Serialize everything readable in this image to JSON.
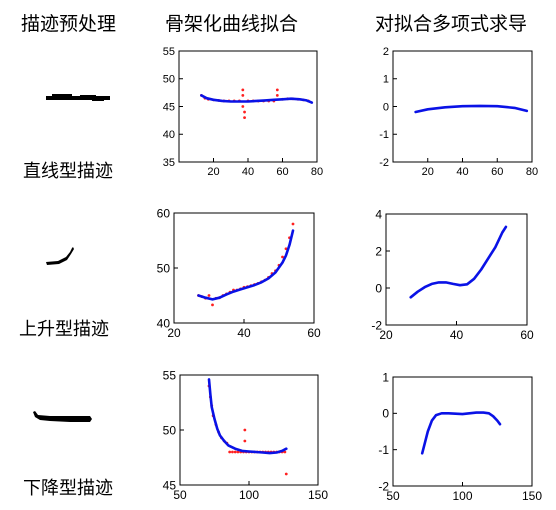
{
  "headers": {
    "col1": "描迹预处理",
    "col2": "骨架化曲线拟合",
    "col3": "对拟合多项式求导"
  },
  "rows": [
    {
      "label": "直线型描迹"
    },
    {
      "label": "上升型描迹"
    },
    {
      "label": "下降型描迹"
    }
  ],
  "chart_data": [
    {
      "id": "fit-straight",
      "type": "scatter",
      "xlim": [
        0,
        80
      ],
      "ylim": [
        35,
        55
      ],
      "xticks": [
        20,
        40,
        60,
        80
      ],
      "yticks": [
        35,
        40,
        45,
        50,
        55
      ],
      "xtick_labels": [
        "20",
        "40",
        "60",
        "80"
      ],
      "ytick_labels": [
        "35",
        "40",
        "45",
        "50",
        "55"
      ],
      "points": [
        [
          13,
          47
        ],
        [
          15,
          46.5
        ],
        [
          17,
          46.3
        ],
        [
          20,
          46.2
        ],
        [
          23,
          46.1
        ],
        [
          26,
          46
        ],
        [
          29,
          46
        ],
        [
          32,
          46
        ],
        [
          35,
          46
        ],
        [
          37,
          48
        ],
        [
          37,
          47
        ],
        [
          37,
          45
        ],
        [
          38,
          44
        ],
        [
          38,
          43
        ],
        [
          40,
          46
        ],
        [
          43,
          46
        ],
        [
          46,
          46
        ],
        [
          49,
          46
        ],
        [
          52,
          46
        ],
        [
          55,
          46
        ],
        [
          57,
          48
        ],
        [
          57,
          47
        ],
        [
          60,
          46.3
        ],
        [
          63,
          46.4
        ],
        [
          66,
          46.4
        ],
        [
          69,
          46.3
        ],
        [
          72,
          46.2
        ],
        [
          75,
          46
        ]
      ],
      "curve": [
        [
          13,
          47
        ],
        [
          16,
          46.5
        ],
        [
          20,
          46.2
        ],
        [
          25,
          46
        ],
        [
          30,
          45.9
        ],
        [
          35,
          45.9
        ],
        [
          40,
          45.9
        ],
        [
          45,
          46
        ],
        [
          50,
          46.1
        ],
        [
          55,
          46.2
        ],
        [
          60,
          46.3
        ],
        [
          65,
          46.4
        ],
        [
          70,
          46.3
        ],
        [
          74,
          46.1
        ],
        [
          77,
          45.7
        ]
      ]
    },
    {
      "id": "deriv-straight",
      "type": "line",
      "xlim": [
        0,
        80
      ],
      "ylim": [
        -2,
        2
      ],
      "xticks": [
        20,
        40,
        60,
        80
      ],
      "yticks": [
        -2,
        -1,
        0,
        1,
        2
      ],
      "xtick_labels": [
        "20",
        "40",
        "60",
        "80"
      ],
      "ytick_labels": [
        "-2",
        "-1",
        "0",
        "1",
        "2"
      ],
      "curve": [
        [
          13,
          -0.2
        ],
        [
          20,
          -0.1
        ],
        [
          30,
          -0.03
        ],
        [
          40,
          0.01
        ],
        [
          50,
          0.02
        ],
        [
          60,
          0.01
        ],
        [
          70,
          -0.05
        ],
        [
          77,
          -0.16
        ]
      ]
    },
    {
      "id": "fit-rising",
      "type": "scatter",
      "xlim": [
        20,
        60
      ],
      "ylim": [
        40,
        60
      ],
      "xticks": [
        20,
        40,
        60
      ],
      "yticks": [
        40,
        50,
        60
      ],
      "xtick_labels": [
        "20",
        "40",
        "60"
      ],
      "ytick_labels": [
        "40",
        "50",
        "60"
      ],
      "points": [
        [
          27,
          45
        ],
        [
          28,
          44.8
        ],
        [
          29,
          44.5
        ],
        [
          30,
          45
        ],
        [
          31,
          43.3
        ],
        [
          32,
          44.5
        ],
        [
          33,
          44.6
        ],
        [
          34,
          45
        ],
        [
          35,
          45.3
        ],
        [
          36,
          45.6
        ],
        [
          37,
          46
        ],
        [
          38,
          46
        ],
        [
          39,
          46.2
        ],
        [
          40,
          46.5
        ],
        [
          41,
          46.6
        ],
        [
          42,
          46.8
        ],
        [
          43,
          47
        ],
        [
          44,
          47.2
        ],
        [
          45,
          47.5
        ],
        [
          46,
          47.8
        ],
        [
          47,
          48.3
        ],
        [
          48,
          49
        ],
        [
          49,
          49.5
        ],
        [
          50,
          50.5
        ],
        [
          51,
          52
        ],
        [
          52,
          53.5
        ],
        [
          53,
          55.5
        ],
        [
          54,
          58
        ]
      ],
      "curve": [
        [
          27,
          45
        ],
        [
          29,
          44.6
        ],
        [
          31,
          44.3
        ],
        [
          33,
          44.6
        ],
        [
          35,
          45.2
        ],
        [
          37,
          45.7
        ],
        [
          39,
          46.1
        ],
        [
          41,
          46.5
        ],
        [
          43,
          46.9
        ],
        [
          45,
          47.4
        ],
        [
          47,
          48.1
        ],
        [
          49,
          49.2
        ],
        [
          51,
          51
        ],
        [
          52,
          52.3
        ],
        [
          53,
          54.2
        ],
        [
          54,
          56.8
        ]
      ]
    },
    {
      "id": "deriv-rising",
      "type": "line",
      "xlim": [
        20,
        60
      ],
      "ylim": [
        -2,
        4
      ],
      "xticks": [
        20,
        40,
        60
      ],
      "yticks": [
        -2,
        0,
        2,
        4
      ],
      "xtick_labels": [
        "20",
        "40",
        "60"
      ],
      "ytick_labels": [
        "-2",
        "0",
        "2",
        "4"
      ],
      "curve": [
        [
          27,
          -0.5
        ],
        [
          29,
          -0.2
        ],
        [
          31,
          0.05
        ],
        [
          33,
          0.22
        ],
        [
          35,
          0.3
        ],
        [
          37,
          0.3
        ],
        [
          39,
          0.22
        ],
        [
          41,
          0.15
        ],
        [
          43,
          0.2
        ],
        [
          45,
          0.5
        ],
        [
          47,
          1
        ],
        [
          49,
          1.6
        ],
        [
          51,
          2.2
        ],
        [
          52,
          2.6
        ],
        [
          53,
          3
        ],
        [
          54,
          3.3
        ]
      ]
    },
    {
      "id": "fit-falling",
      "type": "scatter",
      "xlim": [
        50,
        150
      ],
      "ylim": [
        45,
        55
      ],
      "xticks": [
        50,
        100,
        150
      ],
      "yticks": [
        45,
        50,
        55
      ],
      "xtick_labels": [
        "50",
        "100",
        "150"
      ],
      "ytick_labels": [
        "45",
        "50",
        "55"
      ],
      "points": [
        [
          71,
          54
        ],
        [
          72,
          53
        ],
        [
          73,
          52.2
        ],
        [
          74,
          51.3
        ],
        [
          76,
          50.5
        ],
        [
          78,
          49.8
        ],
        [
          80,
          49.3
        ],
        [
          82,
          49
        ],
        [
          84,
          48.8
        ],
        [
          86,
          48
        ],
        [
          88,
          48
        ],
        [
          90,
          48
        ],
        [
          92,
          48
        ],
        [
          94,
          48
        ],
        [
          96,
          48
        ],
        [
          97,
          50
        ],
        [
          97,
          49
        ],
        [
          98,
          48
        ],
        [
          100,
          48
        ],
        [
          102,
          48
        ],
        [
          104,
          48
        ],
        [
          106,
          48
        ],
        [
          108,
          48
        ],
        [
          110,
          48
        ],
        [
          112,
          48
        ],
        [
          114,
          48
        ],
        [
          116,
          48
        ],
        [
          118,
          48
        ],
        [
          120,
          48
        ],
        [
          122,
          48
        ],
        [
          124,
          48
        ],
        [
          126,
          48
        ],
        [
          127,
          46
        ]
      ],
      "curve": [
        [
          71,
          54.6
        ],
        [
          72,
          53.2
        ],
        [
          73,
          52.1
        ],
        [
          75,
          51
        ],
        [
          77,
          50.1
        ],
        [
          79,
          49.5
        ],
        [
          82,
          49
        ],
        [
          85,
          48.6
        ],
        [
          90,
          48.3
        ],
        [
          95,
          48.1
        ],
        [
          100,
          48.05
        ],
        [
          105,
          48
        ],
        [
          110,
          47.95
        ],
        [
          115,
          47.9
        ],
        [
          120,
          47.95
        ],
        [
          124,
          48.1
        ],
        [
          127,
          48.3
        ]
      ]
    },
    {
      "id": "deriv-falling",
      "type": "line",
      "xlim": [
        50,
        150
      ],
      "ylim": [
        -2,
        1
      ],
      "xticks": [
        50,
        100,
        150
      ],
      "yticks": [
        -2,
        -1,
        0,
        1
      ],
      "xtick_labels": [
        "50",
        "100",
        "150"
      ],
      "ytick_labels": [
        "-2",
        "-1",
        "0",
        "1"
      ],
      "curve": [
        [
          71,
          -1.1
        ],
        [
          73,
          -0.8
        ],
        [
          75,
          -0.5
        ],
        [
          78,
          -0.2
        ],
        [
          81,
          -0.05
        ],
        [
          85,
          0
        ],
        [
          90,
          0
        ],
        [
          95,
          -0.01
        ],
        [
          100,
          -0.02
        ],
        [
          105,
          0
        ],
        [
          110,
          0.02
        ],
        [
          115,
          0.02
        ],
        [
          119,
          0
        ],
        [
          122,
          -0.08
        ],
        [
          125,
          -0.2
        ],
        [
          127,
          -0.3
        ]
      ]
    }
  ]
}
